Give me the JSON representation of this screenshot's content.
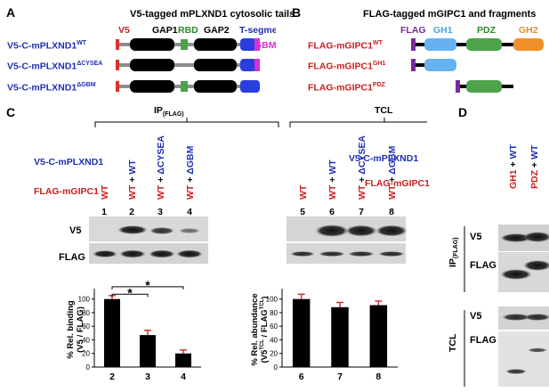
{
  "panels": {
    "A": {
      "letter": "A",
      "title": "V5-tagged mPLXND1 cytosolic tails",
      "domains": {
        "v5": "V5",
        "gap1": "GAP1",
        "rbd": "RBD",
        "gap2": "GAP2",
        "tseg": "T-segment",
        "gbm": "GBM"
      },
      "constructs": [
        {
          "base": "V5-C-mPLXND1",
          "sup": "WT"
        },
        {
          "base": "V5-C-mPLXND1",
          "sup": "ΔCYSEA"
        },
        {
          "base": "V5-C-mPLXND1",
          "sup": "ΔGBM"
        }
      ]
    },
    "B": {
      "letter": "B",
      "title": "FLAG-tagged mGIPC1 and fragments",
      "domains": {
        "flag": "FLAG",
        "gh1": "GH1",
        "pdz": "PDZ",
        "gh2": "GH2"
      },
      "constructs": [
        {
          "base": "FLAG-mGIPC1",
          "sup": "WT"
        },
        {
          "base": "FLAG-mGIPC1",
          "sup": "GH1"
        },
        {
          "base": "FLAG-mGIPC1",
          "sup": "PDZ"
        }
      ]
    },
    "C": {
      "letter": "C",
      "ip_label": "IP",
      "ip_sub": "(FLAG)",
      "tcl_label": "TCL",
      "row1_label": "V5-C-mPLXND1",
      "row2_label": "FLAG-mGIPC1",
      "ip_top": [
        "",
        "WT",
        "ΔCYSEA",
        "ΔGBM"
      ],
      "ip_bottom": [
        "WT",
        "WT",
        "WT",
        "WT"
      ],
      "tcl_top": [
        "",
        "WT",
        "ΔCYSEA",
        "ΔGBM"
      ],
      "tcl_bottom": [
        "WT",
        "WT",
        "WT",
        "WT"
      ],
      "plus": "+",
      "lanes": [
        "1",
        "2",
        "3",
        "4",
        "5",
        "6",
        "7",
        "8"
      ],
      "blot_v5": "V5",
      "blot_flag": "FLAG",
      "star": "*"
    },
    "D": {
      "letter": "D",
      "row1_label": "V5-C-mPLXND1",
      "row2_label": "FLAG-mGIPC1",
      "cols": [
        {
          "red": "GH1",
          "blue": "WT"
        },
        {
          "red": "PDZ",
          "blue": "WT"
        }
      ],
      "plus": "+",
      "ip_label": "IP",
      "ip_sub": "(FLAG)",
      "tcl_label": "TCL",
      "blot_v5": "V5",
      "blot_flag": "FLAG"
    }
  },
  "chart_data": [
    {
      "type": "bar",
      "categories": [
        "2",
        "3",
        "4"
      ],
      "values": [
        100,
        47,
        20
      ],
      "errors": [
        5,
        7,
        5
      ],
      "ylabel": "% Rel. binding (V5 / FLAG)",
      "ylim": [
        0,
        110
      ],
      "yticks": [
        "0",
        "20",
        "40",
        "60",
        "80",
        "100"
      ],
      "significance": [
        "2 vs 3",
        "2 vs 4"
      ]
    },
    {
      "type": "bar",
      "categories": [
        "6",
        "7",
        "8"
      ],
      "values": [
        100,
        88,
        91
      ],
      "errors": [
        7,
        7,
        6
      ],
      "ylabel": "% Rel. abundance (V5TCL / FLAGTCL)",
      "ylabel_parts": {
        "pre": "(V5",
        "sup1": "TCL",
        "mid": " / FLAG",
        "sup2": "TCL",
        "post": ")",
        "top": "% Rel. abundance"
      },
      "ylim": [
        0,
        110
      ],
      "yticks": [
        "0",
        "20",
        "40",
        "60",
        "80",
        "100"
      ]
    }
  ]
}
